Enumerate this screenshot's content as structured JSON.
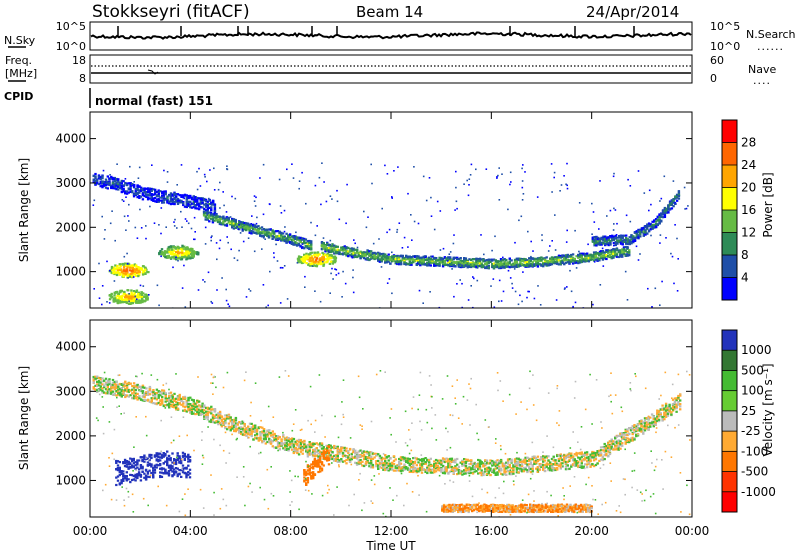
{
  "header": {
    "station": "Stokkseyri (fitACF)",
    "beam": "Beam 14",
    "date": "24/Apr/2014"
  },
  "panels": {
    "nsky": {
      "label": "N.Sky",
      "left_ticks": [
        "10^5",
        "10^0"
      ],
      "right_ticks": [
        "10^5",
        "10^0"
      ],
      "right_label": "N.Search",
      "right_line": "......"
    },
    "freq": {
      "label_top": "Freq.",
      "label_bottom": "[MHz]",
      "left_ticks": [
        "18",
        "8"
      ],
      "right_ticks": [
        "60",
        "0"
      ],
      "right_label": "Nave",
      "right_line": "...."
    },
    "cpid": {
      "label": "CPID",
      "text": "normal (fast) 151"
    }
  },
  "colors": {
    "power": [
      "#0000ff",
      "#1f4fa8",
      "#2e8b57",
      "#66bb44",
      "#ffff00",
      "#ffa500",
      "#ff6600",
      "#ff0000"
    ],
    "velocity": [
      "#2233bb",
      "#337733",
      "#44bb33",
      "#66cc33",
      "#bbbbbb",
      "#ffaa33",
      "#ff7700",
      "#ff3300",
      "#ff0000"
    ]
  },
  "chart_data": [
    {
      "type": "heatmap",
      "panel": "power",
      "ylabel": "Slant Range [km]",
      "ylim": [
        180,
        4600
      ],
      "yticks": [
        "1000",
        "2000",
        "3000",
        "4000"
      ],
      "colorbar": {
        "label": "Power [dB]",
        "ticks": [
          "4",
          "8",
          "12",
          "16",
          "20",
          "24",
          "28"
        ],
        "range": [
          0,
          32
        ]
      },
      "bands": [
        {
          "x": [
            0.1,
            1.0,
            2.0,
            3.0,
            4.0,
            5.0
          ],
          "range_km": [
            3100,
            3000,
            2800,
            2700,
            2600,
            2500
          ],
          "width_km": 200,
          "power_db": 6
        },
        {
          "x": [
            4.5,
            6.0,
            7.0,
            8.0,
            8.8
          ],
          "range_km": [
            2300,
            2050,
            1900,
            1750,
            1600
          ],
          "width_km": 150,
          "power_db": 14
        },
        {
          "x": [
            9.2,
            10.0,
            12.0,
            14.0,
            16.0,
            18.0,
            20.0,
            21.5
          ],
          "range_km": [
            1600,
            1500,
            1300,
            1250,
            1200,
            1250,
            1350,
            1500
          ],
          "width_km": 150,
          "power_db": 15
        },
        {
          "x": [
            20.0,
            21.5,
            22.5,
            23.5
          ],
          "range_km": [
            1700,
            1750,
            2100,
            2800
          ],
          "width_km": 150,
          "power_db": 10
        }
      ],
      "blobs": [
        {
          "x": 1.5,
          "range_km": 1050,
          "power_db": 28
        },
        {
          "x": 3.5,
          "range_km": 1450,
          "power_db": 22
        },
        {
          "x": 9.0,
          "range_km": 1300,
          "power_db": 26
        },
        {
          "x": 1.5,
          "range_km": 450,
          "power_db": 24
        }
      ]
    },
    {
      "type": "heatmap",
      "panel": "velocity",
      "ylabel": "Slant Range [km]",
      "xlabel": "Time UT",
      "xlim": [
        0,
        24
      ],
      "xticks": [
        "00:00",
        "04:00",
        "08:00",
        "12:00",
        "16:00",
        "20:00",
        "00:00"
      ],
      "ylim": [
        180,
        4600
      ],
      "yticks": [
        "1000",
        "2000",
        "3000",
        "4000"
      ],
      "colorbar": {
        "label": "Velocity [m s⁻¹]",
        "ticks": [
          "1000",
          "500",
          "100",
          "25",
          "-25",
          "-100",
          "-500",
          "-1000"
        ]
      },
      "bands": [
        {
          "x": [
            0.1,
            2.0,
            4.0,
            6.0,
            8.0,
            12.0,
            16.0,
            20.0,
            23.5
          ],
          "range_km": [
            3200,
            3000,
            2700,
            2200,
            1800,
            1400,
            1300,
            1500,
            2800
          ],
          "width_km": 250,
          "velocity_ms": 0
        },
        {
          "x": [
            1.0,
            2.0,
            3.0,
            4.0
          ],
          "range_km": [
            1200,
            1300,
            1400,
            1350
          ],
          "width_km": 400,
          "velocity_ms": 600
        },
        {
          "x": [
            8.5,
            9.5
          ],
          "range_km": [
            1100,
            1600
          ],
          "width_km": 300,
          "velocity_ms": -300
        },
        {
          "x": [
            14.0,
            17.0,
            20.0
          ],
          "range_km": [
            400,
            400,
            400
          ],
          "width_km": 120,
          "velocity_ms": -100
        }
      ]
    }
  ]
}
